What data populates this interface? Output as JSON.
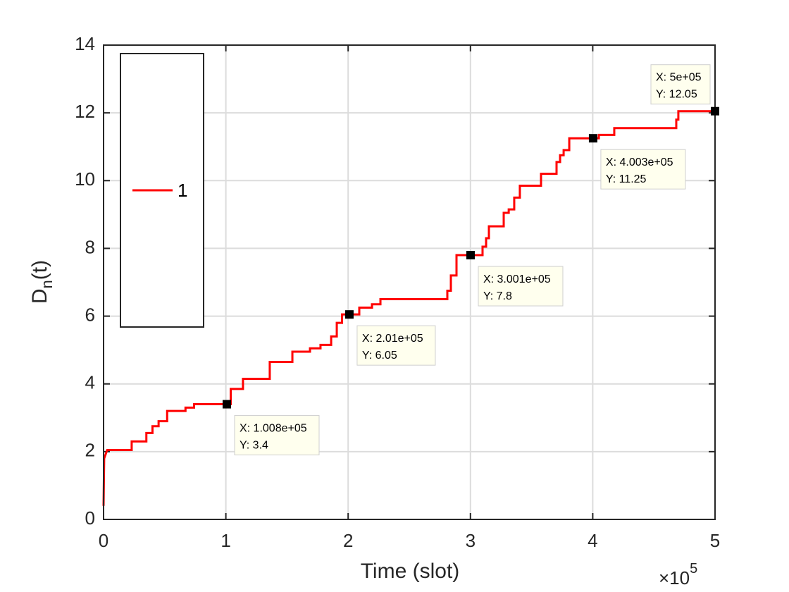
{
  "chart_data": {
    "type": "line",
    "xlabel": "Time (slot)",
    "ylabel": {
      "main": "D",
      "sub": "n",
      "rest": "(t)"
    },
    "x_multiplier": {
      "base": "×10",
      "exp": "5"
    },
    "xlim": [
      0,
      500000
    ],
    "xticks": [
      {
        "value": 0,
        "label": "0"
      },
      {
        "value": 100000,
        "label": "1"
      },
      {
        "value": 200000,
        "label": "2"
      },
      {
        "value": 300000,
        "label": "3"
      },
      {
        "value": 400000,
        "label": "4"
      },
      {
        "value": 500000,
        "label": "5"
      }
    ],
    "ylim": [
      0,
      14
    ],
    "yticks": [
      0,
      2,
      4,
      6,
      8,
      10,
      12,
      14
    ],
    "grid": true,
    "legend": "upper left",
    "series": [
      {
        "name": "1",
        "color": "#ff0000",
        "x": [
          0,
          500,
          1500,
          3000,
          23000,
          23000,
          35000,
          35000,
          40000,
          40000,
          45000,
          45000,
          52000,
          52000,
          67000,
          67000,
          74000,
          74000,
          100800,
          104000,
          104000,
          114000,
          114000,
          135900,
          135900,
          154400,
          154400,
          168800,
          168800,
          177400,
          177400,
          186100,
          186100,
          190700,
          190700,
          195000,
          195000,
          201000,
          209100,
          209100,
          219500,
          219500,
          226400,
          226400,
          281100,
          281100,
          284000,
          284000,
          288600,
          288600,
          300100,
          309900,
          309900,
          312800,
          312800,
          315100,
          315100,
          327200,
          327200,
          331300,
          331300,
          335800,
          335800,
          340400,
          340400,
          357700,
          357700,
          370400,
          370400,
          373300,
          373300,
          376200,
          376200,
          380800,
          380800,
          400300,
          405000,
          405000,
          417600,
          417600,
          468300,
          468300,
          470000,
          470000,
          500000
        ],
        "values": [
          0.4,
          1.8,
          1.9,
          2.05,
          2.05,
          2.3,
          2.3,
          2.55,
          2.55,
          2.75,
          2.75,
          2.9,
          2.9,
          3.2,
          3.2,
          3.3,
          3.3,
          3.4,
          3.4,
          3.4,
          3.85,
          3.85,
          4.15,
          4.15,
          4.65,
          4.65,
          4.95,
          4.95,
          5.05,
          5.05,
          5.15,
          5.15,
          5.4,
          5.4,
          5.8,
          5.8,
          6.05,
          6.05,
          6.05,
          6.25,
          6.25,
          6.35,
          6.35,
          6.5,
          6.5,
          6.75,
          6.75,
          7.2,
          7.2,
          7.8,
          7.8,
          7.8,
          8.05,
          8.05,
          8.3,
          8.3,
          8.65,
          8.65,
          9.05,
          9.05,
          9.15,
          9.15,
          9.5,
          9.5,
          9.85,
          9.85,
          10.2,
          10.2,
          10.55,
          10.55,
          10.75,
          10.75,
          10.9,
          10.9,
          11.25,
          11.25,
          11.25,
          11.35,
          11.35,
          11.55,
          11.55,
          11.8,
          11.8,
          12.05,
          12.05
        ]
      }
    ],
    "datatips": [
      {
        "x": 100800,
        "y": 3.4,
        "x_label": "X: 1.008e+05",
        "y_label": "Y: 3.4"
      },
      {
        "x": 201000,
        "y": 6.05,
        "x_label": "X: 2.01e+05",
        "y_label": "Y: 6.05"
      },
      {
        "x": 300100,
        "y": 7.8,
        "x_label": "X: 3.001e+05",
        "y_label": "Y: 7.8"
      },
      {
        "x": 400300,
        "y": 11.25,
        "x_label": "X: 4.003e+05",
        "y_label": "Y: 11.25"
      },
      {
        "x": 500000,
        "y": 12.05,
        "x_label": "X: 5e+05",
        "y_label": "Y: 12.05"
      }
    ]
  }
}
